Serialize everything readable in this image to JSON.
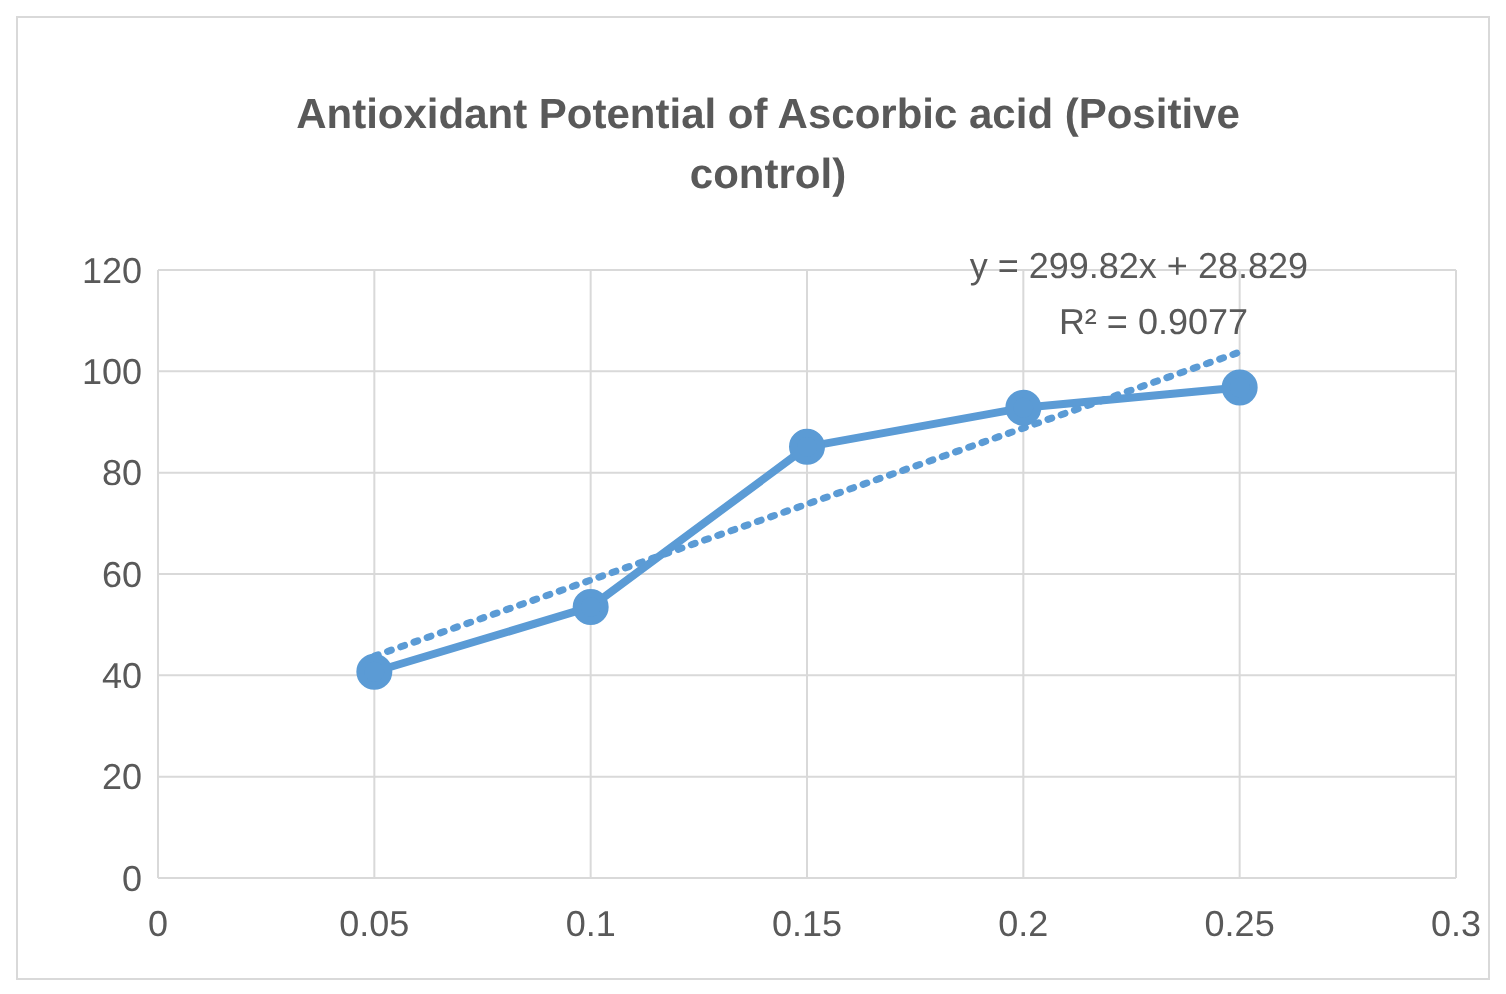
{
  "chart_data": {
    "type": "line",
    "title": "Antioxidant Potential of Ascorbic acid (Positive control)",
    "x": [
      0.05,
      0.1,
      0.15,
      0.2,
      0.25
    ],
    "series": [
      {
        "color": "#5b9bd5",
        "values": [
          40.7,
          53.5,
          85.1,
          92.8,
          96.8
        ],
        "marker": "circle",
        "line_style": "solid"
      },
      {
        "type": "line",
        "x": [
          0.05,
          0.25
        ],
        "color": "#5b9bd5",
        "values": [
          43.8,
          103.8
        ],
        "marker": "none",
        "line_style": "dotted"
      }
    ],
    "annotations": [
      "y = 299.82x + 28.829",
      "R² = 0.9077"
    ],
    "xlim": [
      0,
      0.3
    ],
    "xticks": [
      0,
      0.05,
      0.1,
      0.15,
      0.2,
      0.25,
      0.3
    ],
    "ylim": [
      0,
      120
    ],
    "yticks": [
      0,
      20,
      40,
      60,
      80,
      100,
      120
    ],
    "grid": true
  }
}
